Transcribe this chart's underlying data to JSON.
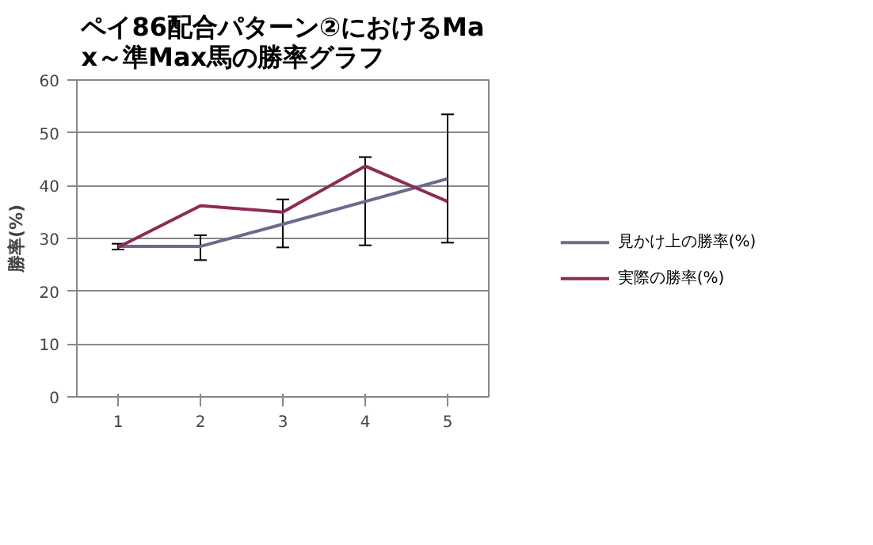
{
  "chart_data": {
    "type": "line",
    "title": "ペイ86配合パターン②におけるMax～準Max馬の勝率グラフ",
    "ylabel": "勝率(%)",
    "categories": [
      "1",
      "2",
      "3",
      "4",
      "5"
    ],
    "series": [
      {
        "name": "見かけ上の勝率(%)",
        "color": "#6b6b8c",
        "values": [
          28.5,
          28.5,
          32.7,
          37.0,
          41.3
        ],
        "errors": [
          [
            27.9,
            29.0
          ],
          [
            25.9,
            30.6
          ],
          [
            28.3,
            37.4
          ],
          [
            28.7,
            45.4
          ],
          [
            29.2,
            53.5
          ]
        ]
      },
      {
        "name": "実際の勝率(%)",
        "color": "#8b2c55",
        "values": [
          28.3,
          36.2,
          35.0,
          43.7,
          37.0
        ]
      }
    ],
    "ylim": [
      0,
      60
    ],
    "yticks": [
      0,
      10,
      20,
      30,
      40,
      50,
      60
    ],
    "grid": "y",
    "legend": "right",
    "marker": "none",
    "line_style": "solid"
  }
}
